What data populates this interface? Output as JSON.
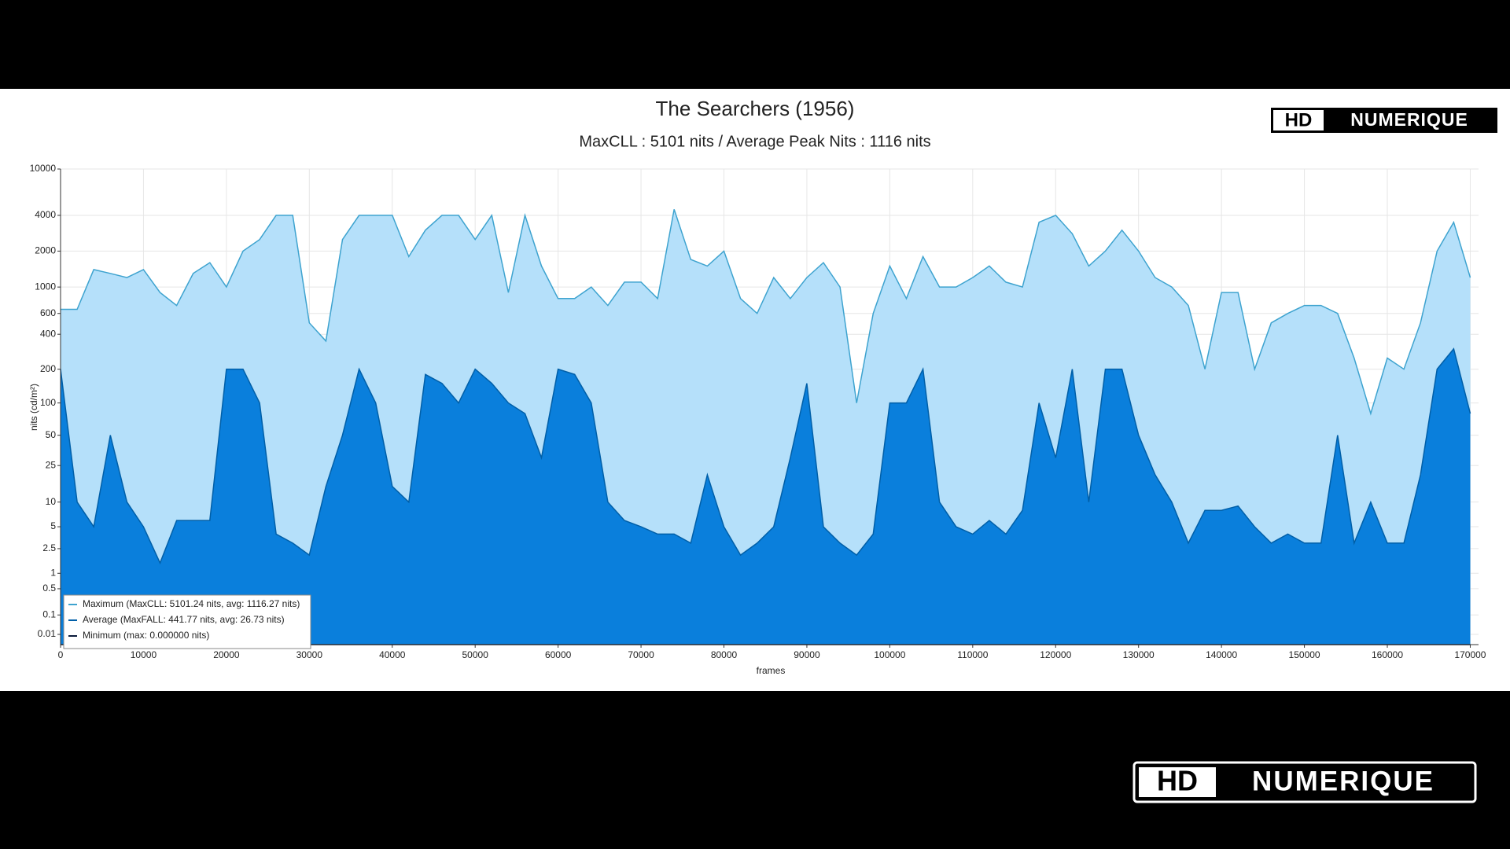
{
  "chart_data": {
    "type": "area",
    "title": "The Searchers (1956)",
    "subtitle": "MaxCLL : 5101 nits / Average Peak Nits : 1116 nits",
    "xlabel": "frames",
    "ylabel": "nits (cd/m²)",
    "yscale": "pq",
    "grid": true,
    "legend": "lower left",
    "logo": {
      "left": "HD",
      "right": "NUMERIQUE"
    },
    "xlim": [
      0,
      171000
    ],
    "xticks": [
      0,
      10000,
      20000,
      30000,
      40000,
      50000,
      60000,
      70000,
      80000,
      90000,
      100000,
      110000,
      120000,
      130000,
      140000,
      150000,
      160000,
      170000
    ],
    "ylim": [
      0,
      10000
    ],
    "yticks": [
      0.01,
      0.1,
      0.5,
      1,
      2.5,
      5,
      10,
      25,
      50,
      100,
      200,
      400,
      600,
      1000,
      2000,
      4000,
      10000
    ],
    "x": [
      0,
      2000,
      4000,
      6000,
      8000,
      10000,
      12000,
      14000,
      16000,
      18000,
      20000,
      22000,
      24000,
      26000,
      28000,
      30000,
      32000,
      34000,
      36000,
      38000,
      40000,
      42000,
      44000,
      46000,
      48000,
      50000,
      52000,
      54000,
      56000,
      58000,
      60000,
      62000,
      64000,
      66000,
      68000,
      70000,
      72000,
      74000,
      76000,
      78000,
      80000,
      82000,
      84000,
      86000,
      88000,
      90000,
      92000,
      94000,
      96000,
      98000,
      100000,
      102000,
      104000,
      106000,
      108000,
      110000,
      112000,
      114000,
      116000,
      118000,
      120000,
      122000,
      124000,
      126000,
      128000,
      130000,
      132000,
      134000,
      136000,
      138000,
      140000,
      142000,
      144000,
      146000,
      148000,
      150000,
      152000,
      154000,
      156000,
      158000,
      160000,
      162000,
      164000,
      166000,
      168000,
      170000
    ],
    "series": [
      {
        "name": "Maximum (MaxCLL: 5101.24 nits, avg: 1116.27 nits)",
        "color": "#3ea3cf",
        "fill": "#b5e0fa",
        "values": [
          650,
          650,
          1400,
          1300,
          1200,
          1400,
          900,
          700,
          1300,
          1600,
          1000,
          2000,
          2500,
          4000,
          4000,
          500,
          350,
          2500,
          4000,
          4000,
          4000,
          1800,
          3000,
          4000,
          4000,
          2500,
          4000,
          900,
          4000,
          1500,
          800,
          800,
          1000,
          700,
          1100,
          1100,
          800,
          4500,
          1700,
          1500,
          2000,
          800,
          600,
          1200,
          800,
          1200,
          1600,
          1000,
          100,
          600,
          1500,
          800,
          1800,
          1000,
          1000,
          1200,
          1500,
          1100,
          1000,
          3500,
          4000,
          2800,
          1500,
          2000,
          3000,
          2000,
          1200,
          1000,
          700,
          200,
          900,
          900,
          200,
          500,
          600,
          700,
          700,
          600,
          250,
          80,
          250,
          200,
          500,
          2000,
          3500,
          1200
        ]
      },
      {
        "name": "Average (MaxFALL: 441.77 nits, avg: 26.73 nits)",
        "color": "#005fa8",
        "fill": "#0a7fdc",
        "values": [
          200,
          10,
          5,
          50,
          10,
          5,
          1.5,
          6,
          6,
          6,
          200,
          200,
          100,
          4,
          3,
          2,
          15,
          50,
          200,
          100,
          15,
          10,
          180,
          150,
          100,
          200,
          150,
          100,
          80,
          30,
          200,
          180,
          100,
          10,
          6,
          5,
          4,
          4,
          3,
          20,
          5,
          2,
          3,
          5,
          30,
          150,
          5,
          3,
          2,
          4,
          100,
          100,
          200,
          10,
          5,
          4,
          6,
          4,
          8,
          100,
          30,
          200,
          10,
          200,
          200,
          50,
          20,
          10,
          3,
          8,
          8,
          9,
          5,
          3,
          4,
          3,
          3,
          50,
          3,
          10,
          3,
          3,
          20,
          200,
          300,
          80
        ]
      },
      {
        "name": "Minimum (max: 0.000000 nits)",
        "color": "#0a1a3a",
        "values": [
          0,
          0,
          0,
          0,
          0,
          0,
          0,
          0,
          0,
          0,
          0,
          0,
          0,
          0,
          0,
          0,
          0,
          0,
          0,
          0,
          0,
          0,
          0,
          0,
          0,
          0,
          0,
          0,
          0,
          0,
          0,
          0,
          0,
          0,
          0,
          0,
          0,
          0,
          0,
          0,
          0,
          0,
          0,
          0,
          0,
          0,
          0,
          0,
          0,
          0,
          0,
          0,
          0,
          0,
          0,
          0,
          0,
          0,
          0,
          0,
          0,
          0,
          0,
          0,
          0,
          0,
          0,
          0,
          0,
          0,
          0,
          0,
          0,
          0,
          0,
          0,
          0,
          0,
          0,
          0,
          0,
          0,
          0,
          0,
          0,
          0
        ]
      }
    ]
  }
}
